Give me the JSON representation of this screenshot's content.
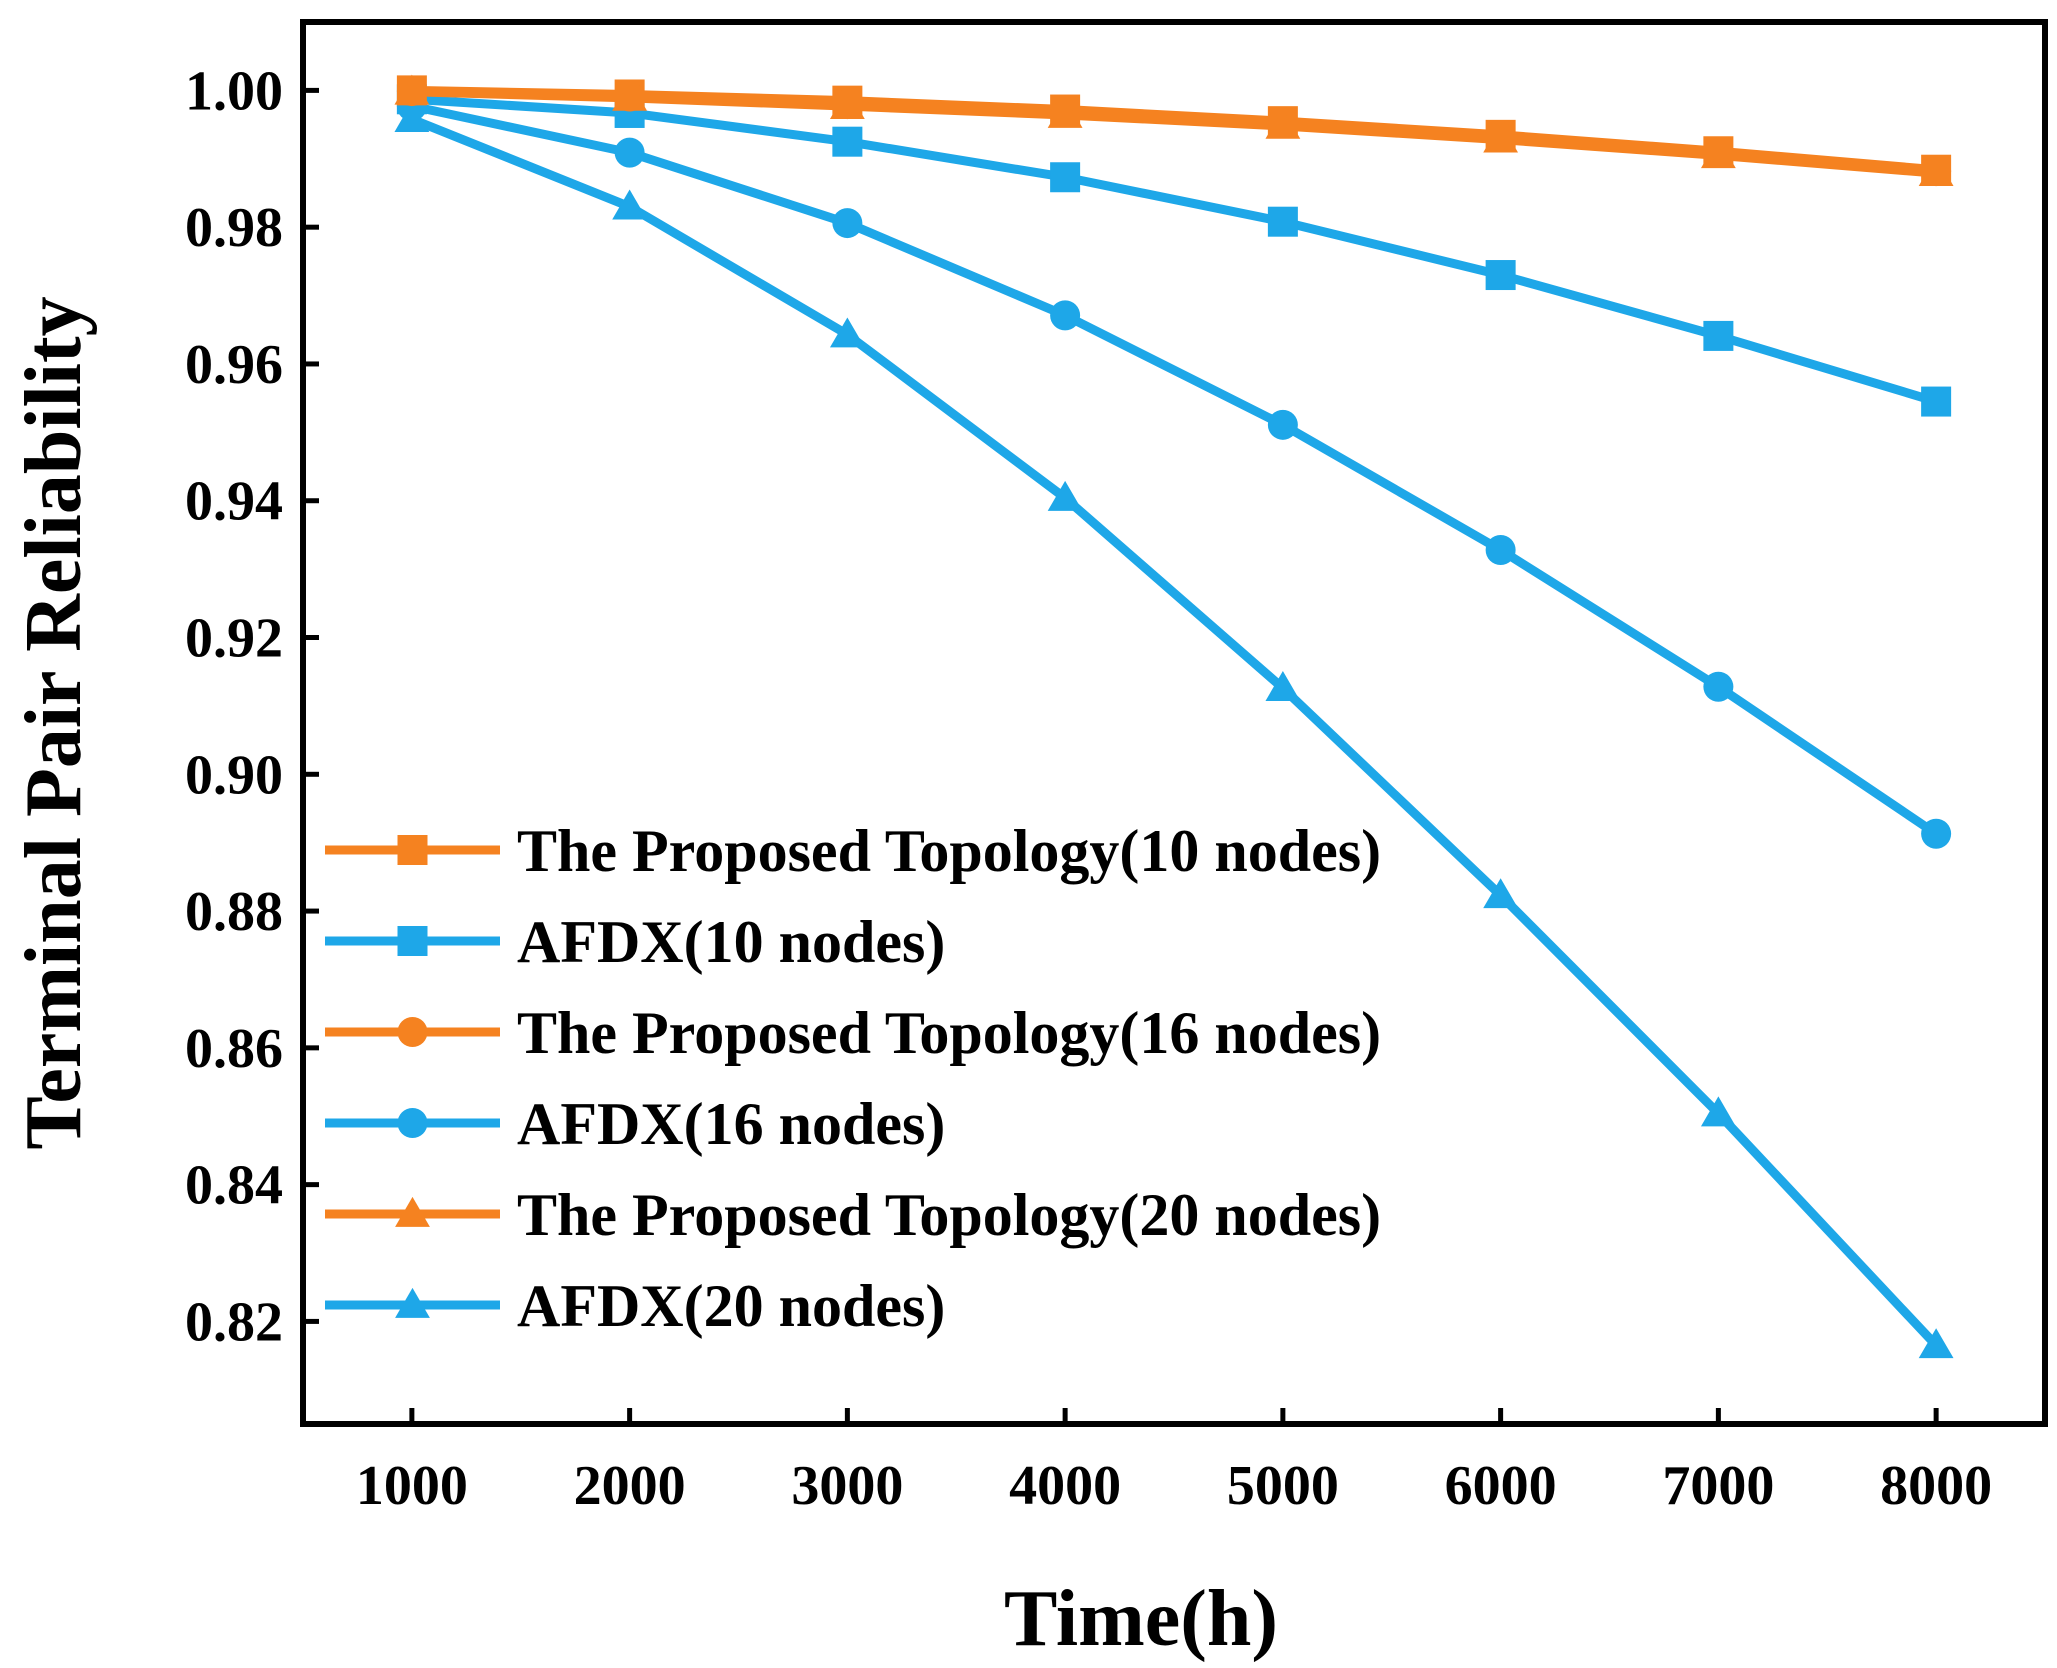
{
  "chart_data": {
    "type": "line",
    "title": "",
    "xlabel": "Time(h)",
    "ylabel": "Terminal Pair Reliability",
    "xlim": [
      500,
      8500
    ],
    "ylim": [
      0.805,
      1.01
    ],
    "x": [
      1000,
      2000,
      3000,
      4000,
      5000,
      6000,
      7000,
      8000
    ],
    "x_ticks": [
      "1000",
      "2000",
      "3000",
      "4000",
      "5000",
      "6000",
      "7000",
      "8000"
    ],
    "y_ticks": [
      "0.82",
      "0.84",
      "0.86",
      "0.88",
      "0.90",
      "0.92",
      "0.94",
      "0.96",
      "0.98",
      "1.00"
    ],
    "grid": false,
    "legend_position": "bottom-left",
    "series": [
      {
        "name": "The Proposed Topology(10 nodes)",
        "color": "#f58220",
        "marker": "square",
        "values": [
          1.0,
          0.9994,
          0.9985,
          0.9972,
          0.9955,
          0.9935,
          0.9911,
          0.9884
        ]
      },
      {
        "name": "AFDX(10 nodes)",
        "color": "#1ea7e8",
        "marker": "square",
        "values": [
          0.9987,
          0.9967,
          0.9925,
          0.9873,
          0.9808,
          0.973,
          0.9641,
          0.9545
        ]
      },
      {
        "name": "The Proposed Topology(16 nodes)",
        "color": "#f58220",
        "marker": "circle",
        "values": [
          0.9999,
          0.9991,
          0.998,
          0.9968,
          0.9952,
          0.9932,
          0.9909,
          0.9882
        ]
      },
      {
        "name": "AFDX(16 nodes)",
        "color": "#1ea7e8",
        "marker": "circle",
        "values": [
          0.9977,
          0.9909,
          0.9806,
          0.9671,
          0.9511,
          0.9328,
          0.9128,
          0.8913
        ]
      },
      {
        "name": "The Proposed Topology(20 nodes)",
        "color": "#f58220",
        "marker": "triangle",
        "values": [
          0.9998,
          0.9989,
          0.9977,
          0.9964,
          0.9948,
          0.9928,
          0.9905,
          0.9879
        ]
      },
      {
        "name": "AFDX(20 nodes)",
        "color": "#1ea7e8",
        "marker": "triangle",
        "values": [
          0.9958,
          0.983,
          0.9643,
          0.9404,
          0.9126,
          0.8823,
          0.8504,
          0.8165
        ]
      }
    ]
  }
}
